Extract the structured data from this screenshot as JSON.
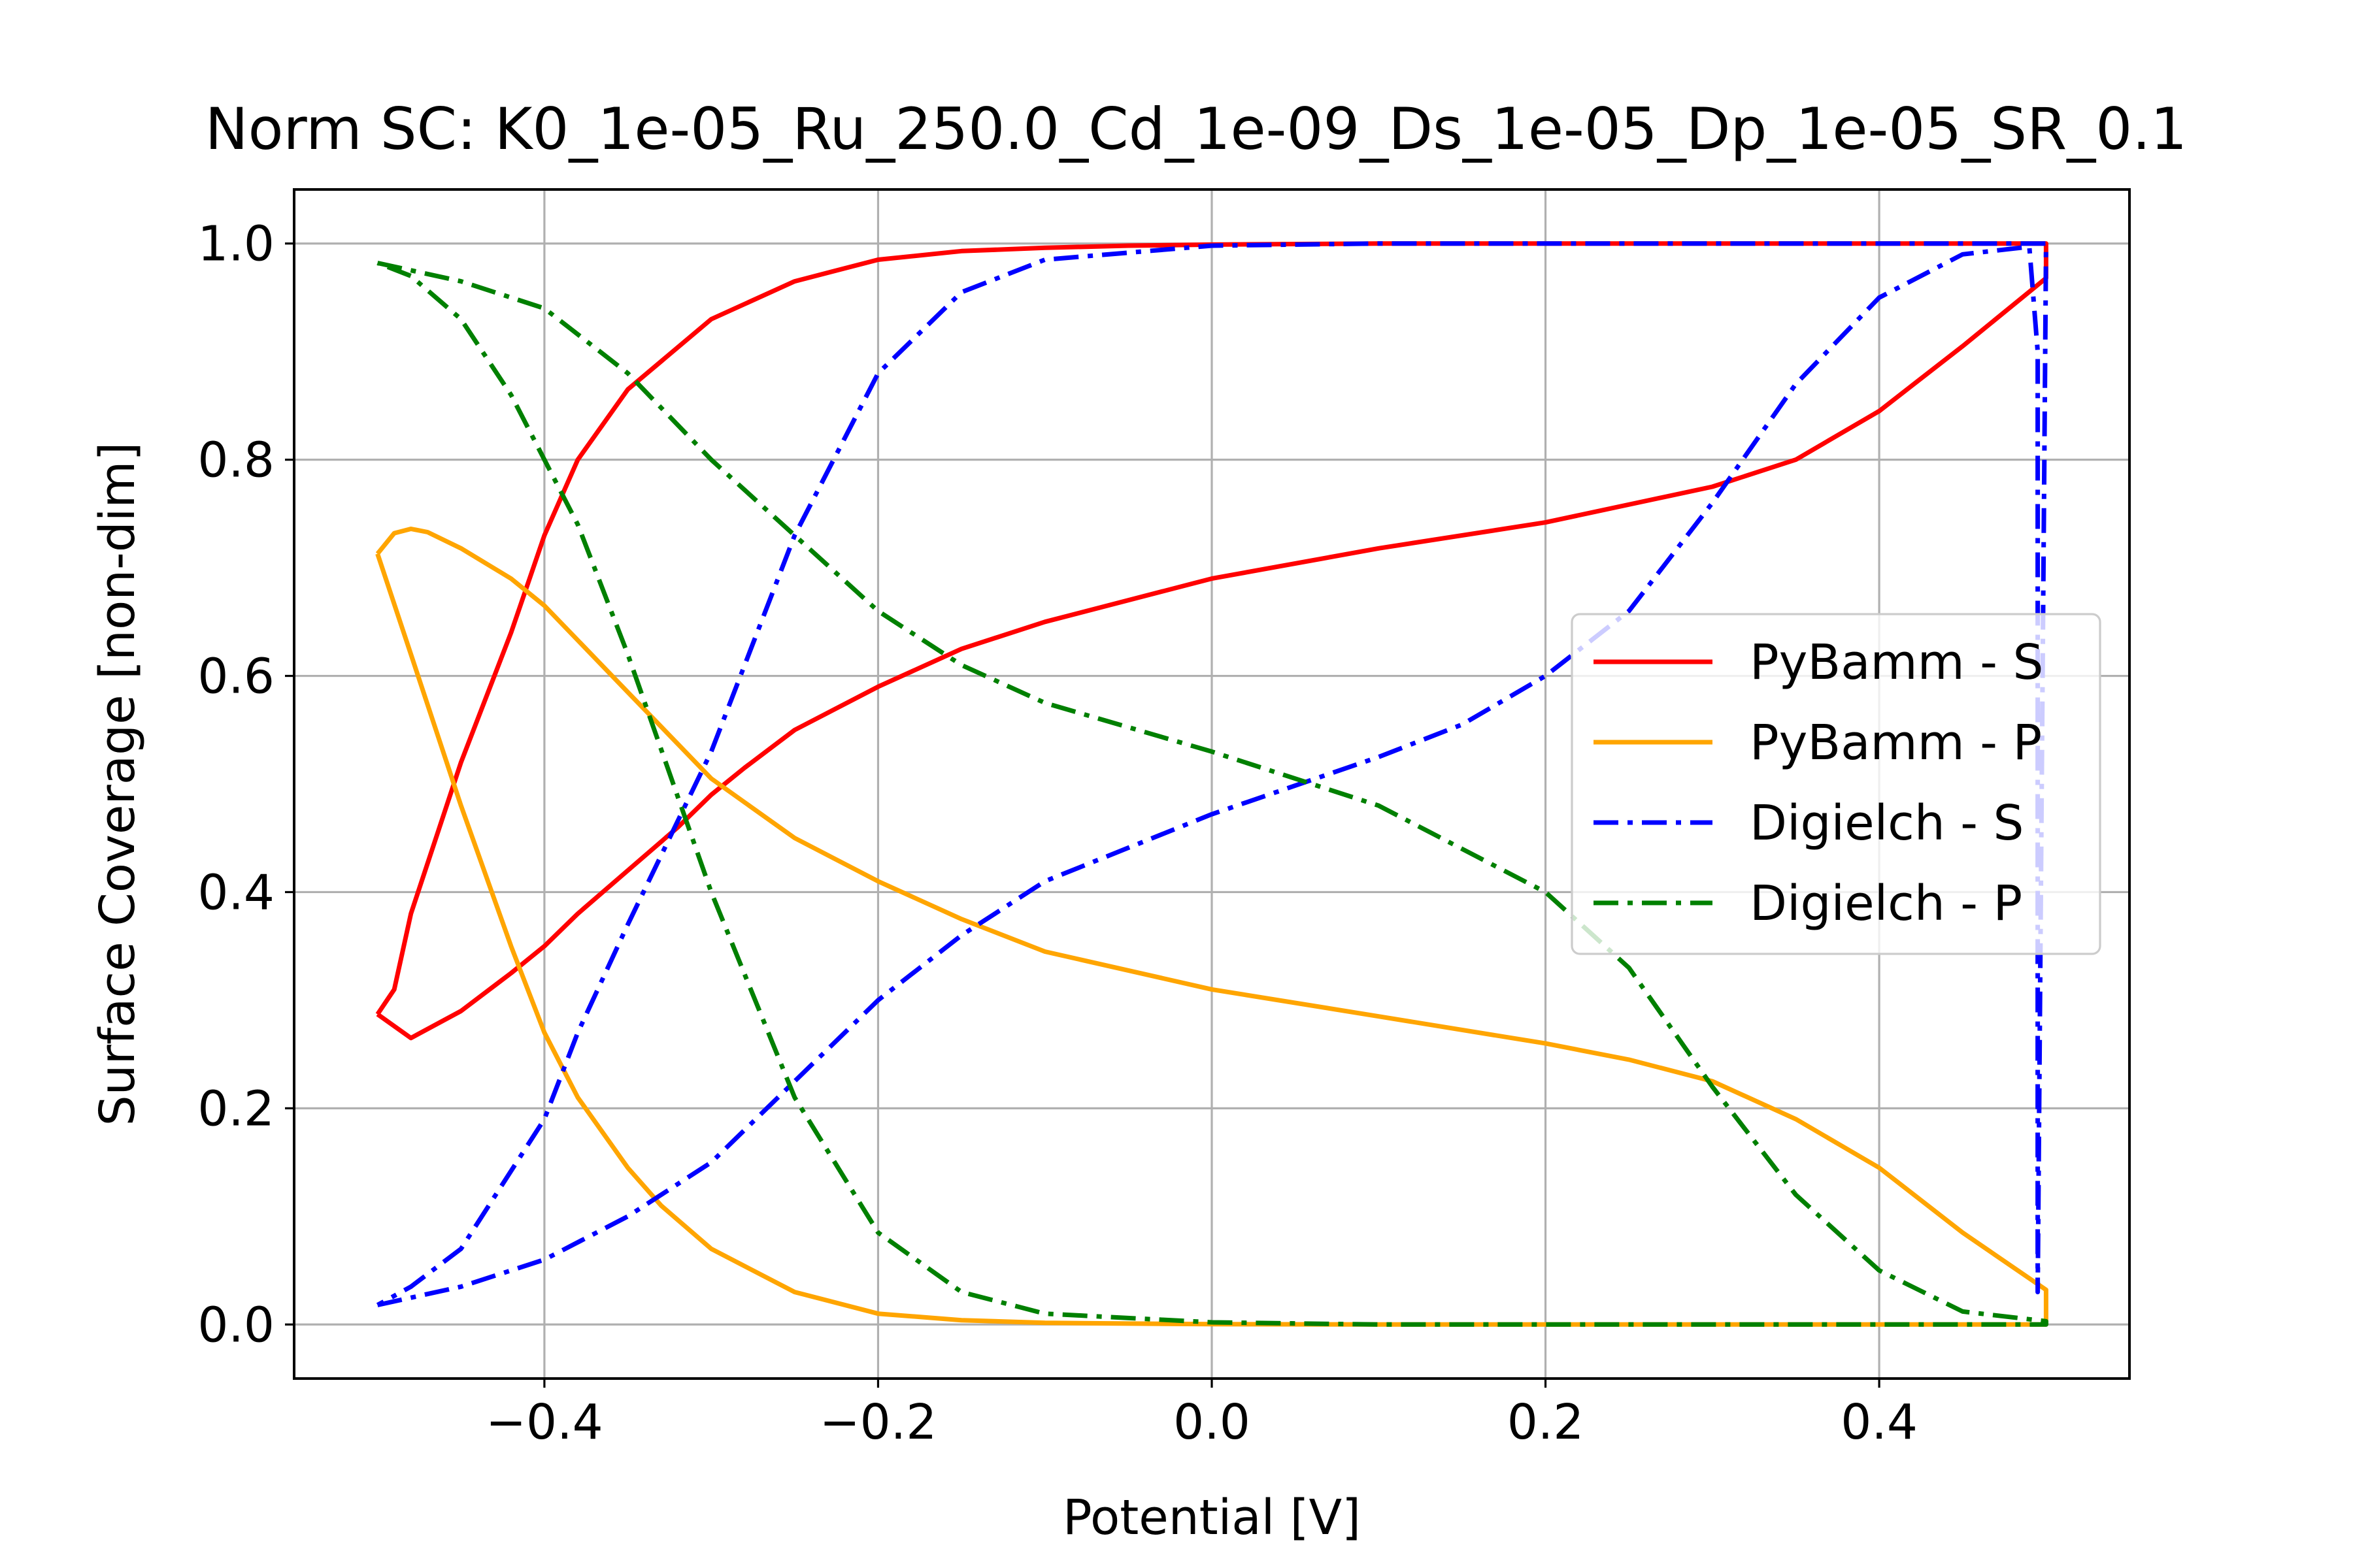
{
  "chart_data": {
    "type": "line",
    "title": "Norm SC: K0_1e-05_Ru_250.0_Cd_1e-09_Ds_1e-05_Dp_1e-05_SR_0.1",
    "xlabel": "Potential [V]",
    "ylabel": "Surface Coverage [non-dim]",
    "xlim": [
      -0.55,
      0.55
    ],
    "ylim": [
      -0.05,
      1.05
    ],
    "xticks": [
      -0.4,
      -0.2,
      0.0,
      0.2,
      0.4
    ],
    "xtick_labels": [
      "−0.4",
      "−0.2",
      "0.0",
      "0.2",
      "0.4"
    ],
    "yticks": [
      0.0,
      0.2,
      0.4,
      0.6,
      0.8,
      1.0
    ],
    "ytick_labels": [
      "0.0",
      "0.2",
      "0.4",
      "0.6",
      "0.8",
      "1.0"
    ],
    "grid": true,
    "legend_position": "center-right",
    "series": [
      {
        "name": "PyBamm - S",
        "color": "#ff0000",
        "style": "solid",
        "x": [
          -0.5,
          -0.48,
          -0.45,
          -0.42,
          -0.4,
          -0.38,
          -0.35,
          -0.32,
          -0.3,
          -0.28,
          -0.25,
          -0.2,
          -0.15,
          -0.1,
          0.0,
          0.1,
          0.2,
          0.3,
          0.35,
          0.4,
          0.45,
          0.5,
          0.5,
          0.45,
          0.4,
          0.3,
          0.2,
          0.1,
          0.0,
          -0.05,
          -0.1,
          -0.15,
          -0.2,
          -0.25,
          -0.3,
          -0.35,
          -0.38,
          -0.4,
          -0.42,
          -0.45,
          -0.48,
          -0.49,
          -0.5
        ],
        "y": [
          0.287,
          0.265,
          0.29,
          0.325,
          0.35,
          0.38,
          0.42,
          0.46,
          0.49,
          0.515,
          0.55,
          0.59,
          0.625,
          0.65,
          0.69,
          0.718,
          0.742,
          0.775,
          0.8,
          0.845,
          0.905,
          0.968,
          1.0,
          1.0,
          1.0,
          1.0,
          1.0,
          1.0,
          0.999,
          0.998,
          0.996,
          0.993,
          0.985,
          0.965,
          0.93,
          0.865,
          0.8,
          0.73,
          0.64,
          0.52,
          0.38,
          0.31,
          0.287
        ]
      },
      {
        "name": "PyBamm - P",
        "color": "#ffa500",
        "style": "solid",
        "x": [
          -0.5,
          -0.49,
          -0.48,
          -0.47,
          -0.45,
          -0.42,
          -0.4,
          -0.35,
          -0.3,
          -0.25,
          -0.2,
          -0.15,
          -0.1,
          0.0,
          0.1,
          0.2,
          0.25,
          0.3,
          0.35,
          0.4,
          0.45,
          0.5,
          0.5,
          0.45,
          0.4,
          0.3,
          0.2,
          0.1,
          0.0,
          -0.1,
          -0.15,
          -0.2,
          -0.25,
          -0.3,
          -0.33,
          -0.35,
          -0.38,
          -0.4,
          -0.42,
          -0.45,
          -0.48,
          -0.5
        ],
        "y": [
          0.713,
          0.732,
          0.736,
          0.733,
          0.718,
          0.69,
          0.665,
          0.585,
          0.505,
          0.45,
          0.41,
          0.375,
          0.345,
          0.31,
          0.285,
          0.26,
          0.245,
          0.225,
          0.19,
          0.145,
          0.085,
          0.032,
          0.0,
          0.0,
          0.0,
          0.0,
          0.0,
          0.0,
          0.0003,
          0.0015,
          0.004,
          0.01,
          0.03,
          0.07,
          0.11,
          0.145,
          0.21,
          0.27,
          0.35,
          0.48,
          0.62,
          0.713
        ]
      },
      {
        "name": "Digielch - S",
        "color": "#0000ff",
        "style": "dashdot",
        "x": [
          -0.5,
          -0.45,
          -0.4,
          -0.35,
          -0.3,
          -0.25,
          -0.2,
          -0.15,
          -0.1,
          0.0,
          0.1,
          0.15,
          0.2,
          0.25,
          0.3,
          0.35,
          0.4,
          0.45,
          0.49,
          0.495,
          0.495,
          0.5,
          0.45,
          0.4,
          0.3,
          0.2,
          0.1,
          0.0,
          -0.1,
          -0.15,
          -0.2,
          -0.25,
          -0.3,
          -0.35,
          -0.38,
          -0.4,
          -0.45,
          -0.48,
          -0.5
        ],
        "y": [
          0.018,
          0.035,
          0.06,
          0.1,
          0.15,
          0.225,
          0.3,
          0.36,
          0.41,
          0.472,
          0.525,
          0.555,
          0.6,
          0.66,
          0.76,
          0.87,
          0.95,
          0.99,
          0.997,
          0.9,
          0.03,
          1.0,
          1.0,
          1.0,
          1.0,
          1.0,
          1.0,
          0.998,
          0.985,
          0.955,
          0.88,
          0.73,
          0.53,
          0.37,
          0.27,
          0.19,
          0.07,
          0.035,
          0.018
        ]
      },
      {
        "name": "Digielch - P",
        "color": "#008000",
        "style": "dashdot",
        "x": [
          -0.5,
          -0.45,
          -0.4,
          -0.35,
          -0.3,
          -0.25,
          -0.2,
          -0.15,
          -0.1,
          0.0,
          0.1,
          0.15,
          0.2,
          0.25,
          0.3,
          0.35,
          0.4,
          0.45,
          0.5,
          0.5,
          0.4,
          0.3,
          0.2,
          0.1,
          0.0,
          -0.1,
          -0.15,
          -0.2,
          -0.25,
          -0.3,
          -0.35,
          -0.38,
          -0.4,
          -0.42,
          -0.45,
          -0.48,
          -0.5
        ],
        "y": [
          0.982,
          0.965,
          0.94,
          0.88,
          0.8,
          0.73,
          0.66,
          0.61,
          0.575,
          0.53,
          0.48,
          0.44,
          0.4,
          0.33,
          0.22,
          0.12,
          0.05,
          0.012,
          0.003,
          0.0,
          0.0,
          0.0,
          0.0,
          0.0,
          0.002,
          0.01,
          0.03,
          0.085,
          0.21,
          0.4,
          0.62,
          0.74,
          0.8,
          0.86,
          0.93,
          0.97,
          0.982
        ]
      }
    ]
  }
}
